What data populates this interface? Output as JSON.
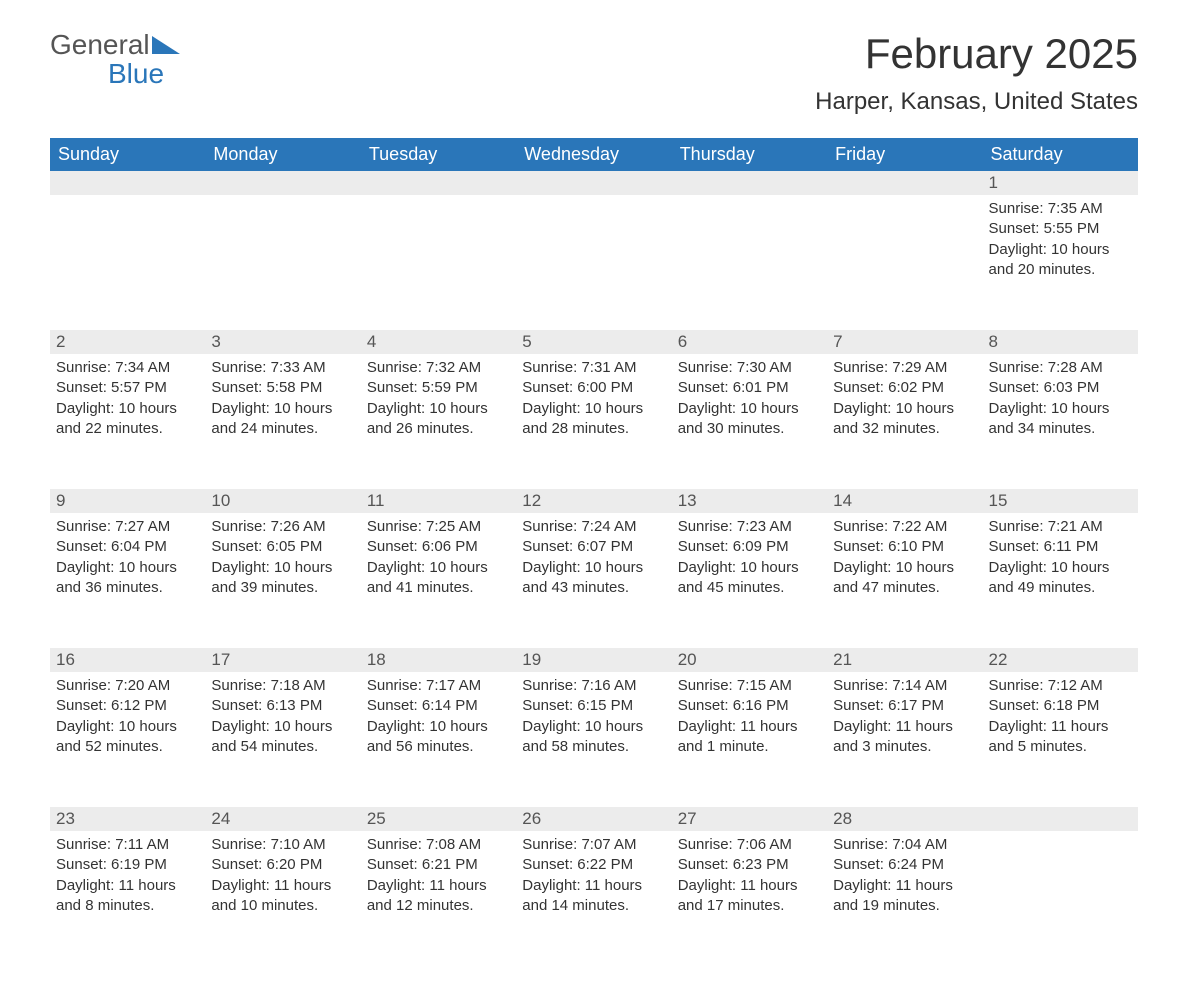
{
  "logo": {
    "text1": "General",
    "text2": "Blue"
  },
  "title": "February 2025",
  "location": "Harper, Kansas, United States",
  "colors": {
    "header_bg": "#2a76b9",
    "header_text": "#ffffff",
    "daynum_bg": "#ececec",
    "rule": "#2a76b9",
    "body_text": "#333333"
  },
  "weekdays": [
    "Sunday",
    "Monday",
    "Tuesday",
    "Wednesday",
    "Thursday",
    "Friday",
    "Saturday"
  ],
  "weeks": [
    [
      null,
      null,
      null,
      null,
      null,
      null,
      {
        "n": "1",
        "sunrise": "7:35 AM",
        "sunset": "5:55 PM",
        "daylight": "10 hours and 20 minutes."
      }
    ],
    [
      {
        "n": "2",
        "sunrise": "7:34 AM",
        "sunset": "5:57 PM",
        "daylight": "10 hours and 22 minutes."
      },
      {
        "n": "3",
        "sunrise": "7:33 AM",
        "sunset": "5:58 PM",
        "daylight": "10 hours and 24 minutes."
      },
      {
        "n": "4",
        "sunrise": "7:32 AM",
        "sunset": "5:59 PM",
        "daylight": "10 hours and 26 minutes."
      },
      {
        "n": "5",
        "sunrise": "7:31 AM",
        "sunset": "6:00 PM",
        "daylight": "10 hours and 28 minutes."
      },
      {
        "n": "6",
        "sunrise": "7:30 AM",
        "sunset": "6:01 PM",
        "daylight": "10 hours and 30 minutes."
      },
      {
        "n": "7",
        "sunrise": "7:29 AM",
        "sunset": "6:02 PM",
        "daylight": "10 hours and 32 minutes."
      },
      {
        "n": "8",
        "sunrise": "7:28 AM",
        "sunset": "6:03 PM",
        "daylight": "10 hours and 34 minutes."
      }
    ],
    [
      {
        "n": "9",
        "sunrise": "7:27 AM",
        "sunset": "6:04 PM",
        "daylight": "10 hours and 36 minutes."
      },
      {
        "n": "10",
        "sunrise": "7:26 AM",
        "sunset": "6:05 PM",
        "daylight": "10 hours and 39 minutes."
      },
      {
        "n": "11",
        "sunrise": "7:25 AM",
        "sunset": "6:06 PM",
        "daylight": "10 hours and 41 minutes."
      },
      {
        "n": "12",
        "sunrise": "7:24 AM",
        "sunset": "6:07 PM",
        "daylight": "10 hours and 43 minutes."
      },
      {
        "n": "13",
        "sunrise": "7:23 AM",
        "sunset": "6:09 PM",
        "daylight": "10 hours and 45 minutes."
      },
      {
        "n": "14",
        "sunrise": "7:22 AM",
        "sunset": "6:10 PM",
        "daylight": "10 hours and 47 minutes."
      },
      {
        "n": "15",
        "sunrise": "7:21 AM",
        "sunset": "6:11 PM",
        "daylight": "10 hours and 49 minutes."
      }
    ],
    [
      {
        "n": "16",
        "sunrise": "7:20 AM",
        "sunset": "6:12 PM",
        "daylight": "10 hours and 52 minutes."
      },
      {
        "n": "17",
        "sunrise": "7:18 AM",
        "sunset": "6:13 PM",
        "daylight": "10 hours and 54 minutes."
      },
      {
        "n": "18",
        "sunrise": "7:17 AM",
        "sunset": "6:14 PM",
        "daylight": "10 hours and 56 minutes."
      },
      {
        "n": "19",
        "sunrise": "7:16 AM",
        "sunset": "6:15 PM",
        "daylight": "10 hours and 58 minutes."
      },
      {
        "n": "20",
        "sunrise": "7:15 AM",
        "sunset": "6:16 PM",
        "daylight": "11 hours and 1 minute."
      },
      {
        "n": "21",
        "sunrise": "7:14 AM",
        "sunset": "6:17 PM",
        "daylight": "11 hours and 3 minutes."
      },
      {
        "n": "22",
        "sunrise": "7:12 AM",
        "sunset": "6:18 PM",
        "daylight": "11 hours and 5 minutes."
      }
    ],
    [
      {
        "n": "23",
        "sunrise": "7:11 AM",
        "sunset": "6:19 PM",
        "daylight": "11 hours and 8 minutes."
      },
      {
        "n": "24",
        "sunrise": "7:10 AM",
        "sunset": "6:20 PM",
        "daylight": "11 hours and 10 minutes."
      },
      {
        "n": "25",
        "sunrise": "7:08 AM",
        "sunset": "6:21 PM",
        "daylight": "11 hours and 12 minutes."
      },
      {
        "n": "26",
        "sunrise": "7:07 AM",
        "sunset": "6:22 PM",
        "daylight": "11 hours and 14 minutes."
      },
      {
        "n": "27",
        "sunrise": "7:06 AM",
        "sunset": "6:23 PM",
        "daylight": "11 hours and 17 minutes."
      },
      {
        "n": "28",
        "sunrise": "7:04 AM",
        "sunset": "6:24 PM",
        "daylight": "11 hours and 19 minutes."
      },
      null
    ]
  ],
  "labels": {
    "sunrise": "Sunrise: ",
    "sunset": "Sunset: ",
    "daylight": "Daylight: "
  }
}
